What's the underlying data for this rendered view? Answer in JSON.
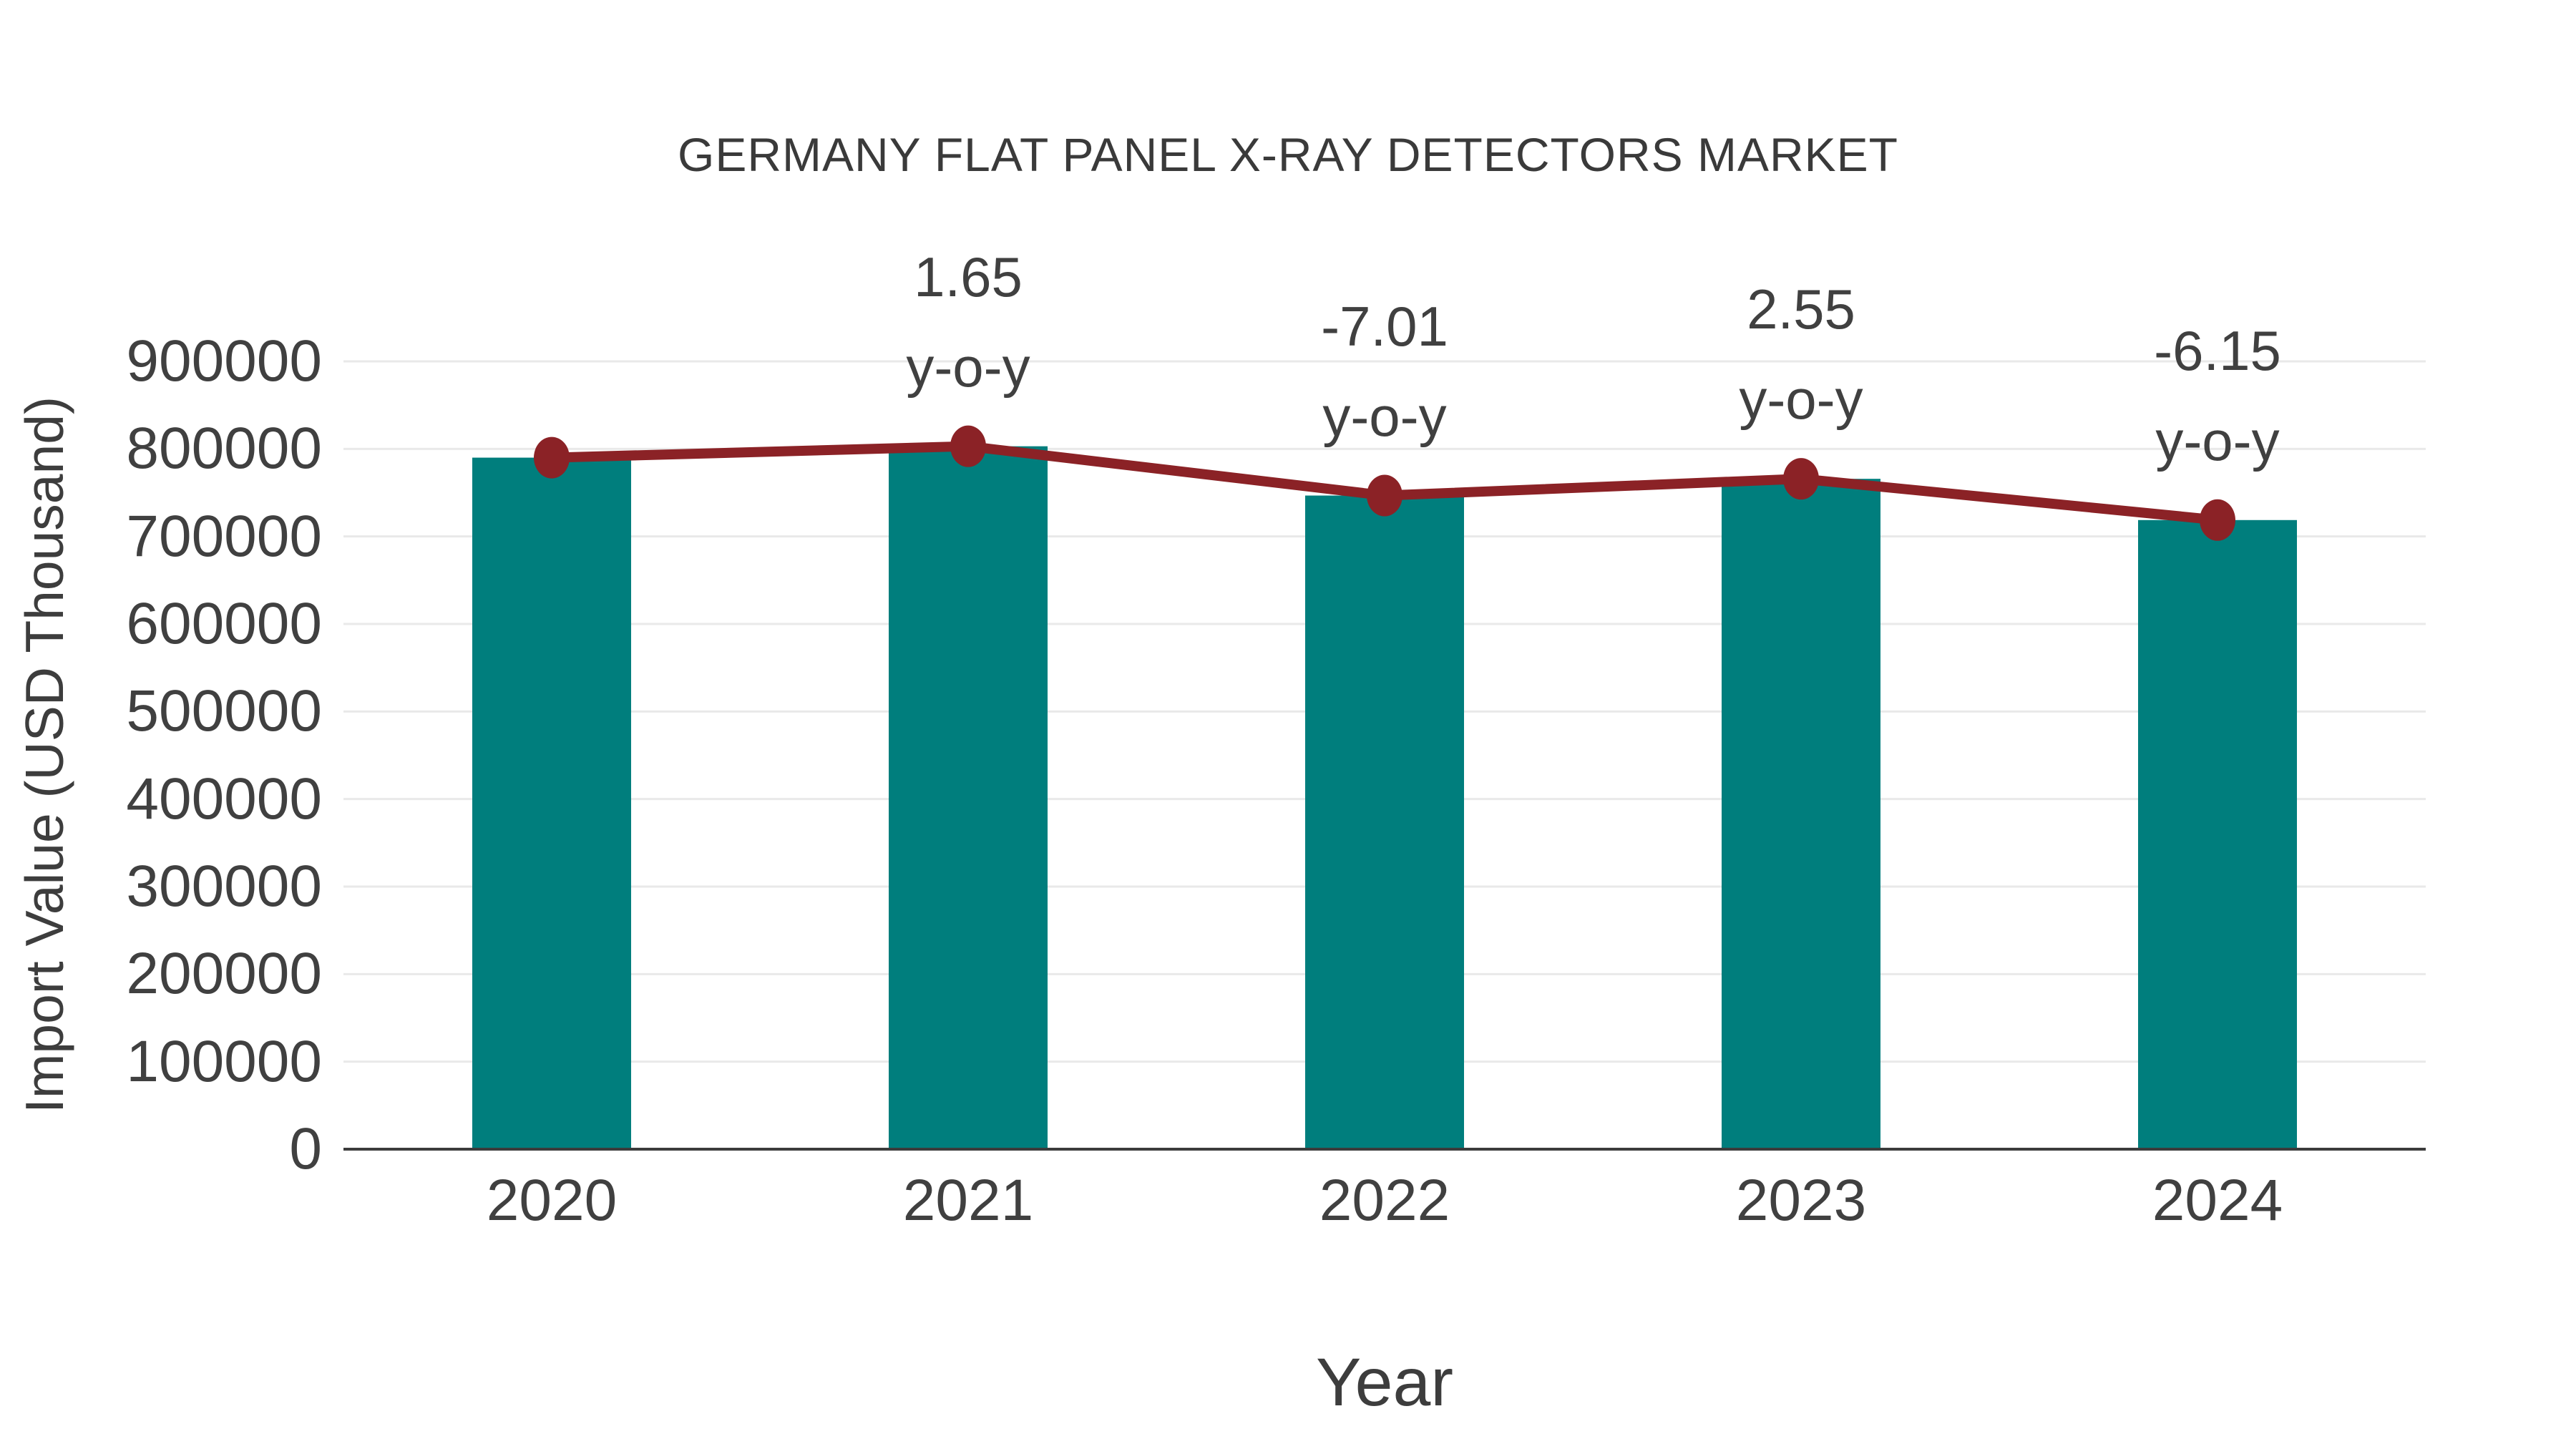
{
  "page_background": "#ffffff",
  "chart_data": {
    "type": "bar",
    "title": "GERMANY FLAT PANEL X-RAY DETECTORS MARKET",
    "xlabel": "Year",
    "ylabel": "Import Value (USD Thousand)",
    "categories": [
      "2020",
      "2021",
      "2022",
      "2023",
      "2024"
    ],
    "series": [
      {
        "name": "Import Value (USD Thousand)",
        "type": "bar",
        "values": [
          790000,
          803000,
          746700,
          765800,
          718700
        ],
        "color": "#007e7d",
        "note": "bar heights estimated from gridlines; no data labels shown"
      },
      {
        "name": "y-o-y trend line",
        "type": "line",
        "values": [
          790000,
          803000,
          746700,
          765800,
          718700
        ],
        "color": "#8b2226",
        "marker": "circle"
      }
    ],
    "annotations": [
      {
        "category": "2021",
        "value": "1.65",
        "suffix": "y-o-y"
      },
      {
        "category": "2022",
        "value": "-7.01",
        "suffix": "y-o-y"
      },
      {
        "category": "2023",
        "value": "2.55",
        "suffix": "y-o-y"
      },
      {
        "category": "2024",
        "value": "-6.15",
        "suffix": "y-o-y"
      }
    ],
    "ylim": [
      0,
      900000
    ],
    "ytick_labels": [
      "0",
      "100000",
      "200000",
      "300000",
      "400000",
      "500000",
      "600000",
      "700000",
      "800000",
      "900000"
    ],
    "ytick_values": [
      0,
      100000,
      200000,
      300000,
      400000,
      500000,
      600000,
      700000,
      800000,
      900000
    ],
    "grid": "horizontal",
    "legend": "none",
    "colors": {
      "bar": "#007e7d",
      "line": "#8b2226",
      "gridline": "#e9e9e9",
      "axis_line": "#3c3c3c",
      "text": "#404040"
    }
  }
}
